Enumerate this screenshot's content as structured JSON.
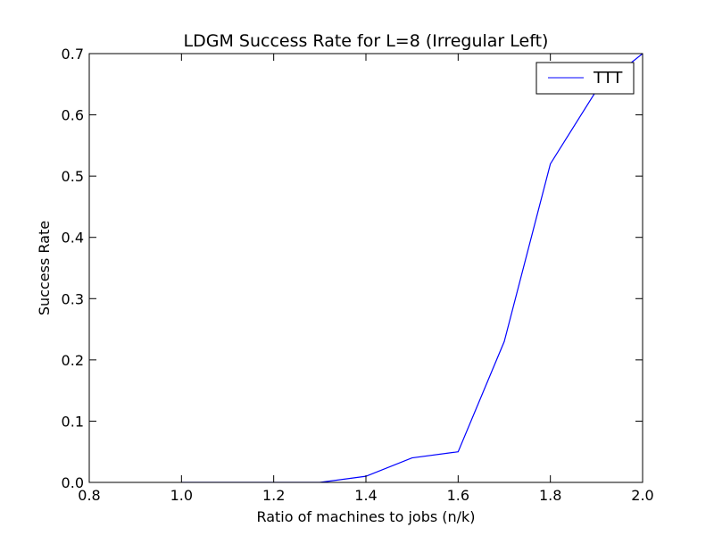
{
  "chart_data": {
    "type": "line",
    "title": "LDGM Success Rate for L=8 (Irregular Left)",
    "xlabel": "Ratio of machines to jobs (n/k)",
    "ylabel": "Success Rate",
    "xlim": [
      0.8,
      2.0
    ],
    "ylim": [
      0.0,
      0.7
    ],
    "x_ticks": [
      "0.8",
      "1.0",
      "1.2",
      "1.4",
      "1.6",
      "1.8",
      "2.0"
    ],
    "y_ticks": [
      "0.0",
      "0.1",
      "0.2",
      "0.3",
      "0.4",
      "0.5",
      "0.6",
      "0.7"
    ],
    "grid": false,
    "legend": "top-right",
    "series": [
      {
        "name": "TTT",
        "color": "#0000ff",
        "x": [
          1.0,
          1.1,
          1.2,
          1.3,
          1.4,
          1.5,
          1.6,
          1.7,
          1.8,
          1.9,
          2.0
        ],
        "y": [
          0.0,
          0.0,
          0.0,
          0.0,
          0.01,
          0.04,
          0.05,
          0.23,
          0.52,
          0.64,
          0.7
        ]
      }
    ]
  }
}
